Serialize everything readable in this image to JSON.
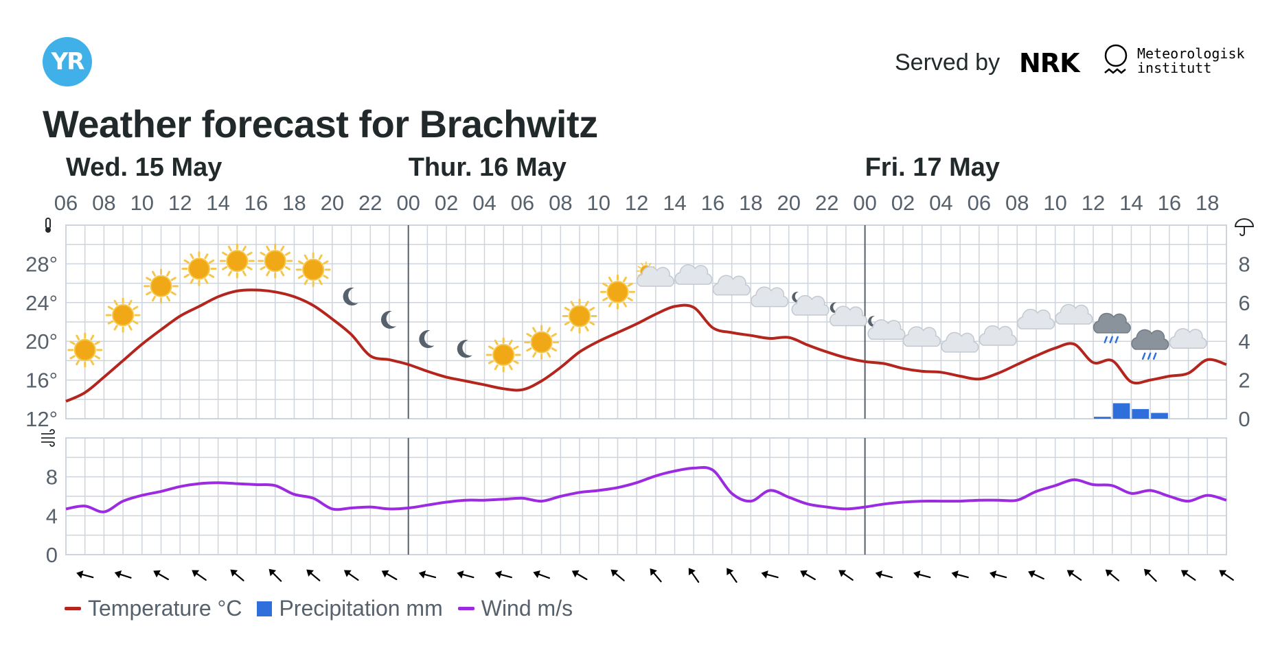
{
  "header": {
    "logo_text": "YR",
    "served_by": "Served by",
    "nrk_logo_text": "NRK",
    "met_name": [
      "Meteorologisk",
      "institutt"
    ]
  },
  "title": "Weather forecast for Brachwitz",
  "colors": {
    "temperature": "#b4251d",
    "precipitation": "#2f6fdc",
    "wind": "#9b2ae0",
    "grid": "#ced4dc",
    "day_separator": "#56616c",
    "text": "#21292b",
    "axis_text": "#56616c",
    "sun": "#f0a817",
    "cloud": "#e2e5ea",
    "moon": "#56616c"
  },
  "legend": [
    {
      "label": "Temperature °C",
      "kind": "line",
      "color_key": "temperature"
    },
    {
      "label": "Precipitation mm",
      "kind": "box",
      "color_key": "precipitation"
    },
    {
      "label": "Wind m/s",
      "kind": "line",
      "color_key": "wind"
    }
  ],
  "chart_data": {
    "type": "line",
    "days": [
      {
        "label": "Wed. 15 May",
        "start_hour": 6
      },
      {
        "label": "Thur. 16 May",
        "start_hour": 24
      },
      {
        "label": "Fri. 17 May",
        "start_hour": 48
      }
    ],
    "time_ticks": [
      "06",
      "08",
      "10",
      "12",
      "14",
      "16",
      "18",
      "20",
      "22",
      "00",
      "02",
      "04",
      "06",
      "08",
      "10",
      "12",
      "14",
      "16",
      "18",
      "20",
      "22",
      "00",
      "02",
      "04",
      "06",
      "08",
      "10",
      "12",
      "14",
      "16",
      "18"
    ],
    "x_range_hours": [
      6,
      67
    ],
    "temperature": {
      "axis_icon": "thermometer-icon",
      "yticks": [
        "12°",
        "16°",
        "20°",
        "24°",
        "28°"
      ],
      "ylim": [
        12,
        32
      ],
      "series": {
        "name": "Temperature °C",
        "x": [
          6,
          7,
          8,
          9,
          10,
          11,
          12,
          13,
          14,
          15,
          16,
          17,
          18,
          19,
          20,
          21,
          22,
          23,
          24,
          25,
          26,
          27,
          28,
          29,
          30,
          31,
          32,
          33,
          34,
          35,
          36,
          37,
          38,
          39,
          40,
          41,
          42,
          43,
          44,
          45,
          46,
          47,
          48,
          49,
          50,
          51,
          52,
          53,
          54,
          55,
          56,
          57,
          58,
          59,
          60,
          61,
          62,
          63,
          64,
          65,
          66,
          67
        ],
        "values": [
          13.8,
          14.7,
          16.3,
          18.0,
          19.7,
          21.2,
          22.6,
          23.6,
          24.6,
          25.2,
          25.3,
          25.1,
          24.6,
          23.7,
          22.3,
          20.7,
          18.5,
          18.1,
          17.6,
          16.9,
          16.3,
          15.9,
          15.5,
          15.1,
          15.0,
          15.9,
          17.3,
          18.9,
          20.0,
          20.9,
          21.8,
          22.8,
          23.6,
          23.5,
          21.4,
          20.9,
          20.6,
          20.3,
          20.4,
          19.6,
          18.9,
          18.3,
          17.9,
          17.7,
          17.2,
          16.9,
          16.8,
          16.4,
          16.1,
          16.7,
          17.6,
          18.5,
          19.3,
          19.7,
          17.8,
          18.0,
          15.8,
          16.0,
          16.4,
          16.7,
          18.1,
          17.6
        ]
      },
      "symbols": [
        {
          "hour": 7,
          "icon": "sun-icon",
          "temp": 19.1
        },
        {
          "hour": 9,
          "icon": "sun-icon",
          "temp": 22.7
        },
        {
          "hour": 11,
          "icon": "sun-icon",
          "temp": 25.7
        },
        {
          "hour": 13,
          "icon": "sun-icon",
          "temp": 27.5
        },
        {
          "hour": 15,
          "icon": "sun-icon",
          "temp": 28.3
        },
        {
          "hour": 17,
          "icon": "sun-icon",
          "temp": 28.3
        },
        {
          "hour": 19,
          "icon": "sun-icon",
          "temp": 27.4
        },
        {
          "hour": 21,
          "icon": "moon-icon",
          "temp": 24.6
        },
        {
          "hour": 23,
          "icon": "moon-icon",
          "temp": 22.2
        },
        {
          "hour": 25,
          "icon": "moon-icon",
          "temp": 20.2
        },
        {
          "hour": 27,
          "icon": "moon-icon",
          "temp": 19.2
        },
        {
          "hour": 29,
          "icon": "sun-icon",
          "temp": 18.6
        },
        {
          "hour": 31,
          "icon": "sun-icon",
          "temp": 19.9
        },
        {
          "hour": 33,
          "icon": "sun-icon",
          "temp": 22.6
        },
        {
          "hour": 35,
          "icon": "sun-icon",
          "temp": 25.1
        },
        {
          "hour": 37,
          "icon": "cloud-sun-icon",
          "temp": 26.4
        },
        {
          "hour": 39,
          "icon": "cloud-icon",
          "temp": 26.6
        },
        {
          "hour": 41,
          "icon": "cloud-icon",
          "temp": 25.5
        },
        {
          "hour": 43,
          "icon": "cloud-icon",
          "temp": 24.3
        },
        {
          "hour": 45,
          "icon": "cloud-moon-icon",
          "temp": 23.7
        },
        {
          "hour": 47,
          "icon": "cloud-moon-icon",
          "temp": 22.6
        },
        {
          "hour": 49,
          "icon": "cloud-moon-icon",
          "temp": 21.2
        },
        {
          "hour": 51,
          "icon": "cloud-icon",
          "temp": 20.2
        },
        {
          "hour": 53,
          "icon": "cloud-icon",
          "temp": 19.6
        },
        {
          "hour": 55,
          "icon": "cloud-icon",
          "temp": 20.3
        },
        {
          "hour": 57,
          "icon": "cloud-icon",
          "temp": 22.0
        },
        {
          "hour": 59,
          "icon": "cloud-icon",
          "temp": 22.5
        },
        {
          "hour": 61,
          "icon": "rain-cloud-icon",
          "temp": 21.3
        },
        {
          "hour": 63,
          "icon": "rain-cloud-icon",
          "temp": 19.6
        },
        {
          "hour": 65,
          "icon": "cloud-icon",
          "temp": 20.0
        }
      ]
    },
    "precipitation": {
      "axis_icon": "umbrella-icon",
      "yticks": [
        "0",
        "2",
        "4",
        "6",
        "8"
      ],
      "ylim": [
        0,
        10
      ],
      "series": {
        "name": "Precipitation mm",
        "x": [
          60,
          61,
          62,
          63
        ],
        "values": [
          0.1,
          0.8,
          0.5,
          0.3
        ]
      }
    },
    "wind": {
      "axis_icon": "wind-icon",
      "yticks": [
        "0",
        "4",
        "8"
      ],
      "ylim": [
        0,
        12
      ],
      "series": {
        "name": "Wind m/s",
        "x": [
          6,
          7,
          8,
          9,
          10,
          11,
          12,
          13,
          14,
          15,
          16,
          17,
          18,
          19,
          20,
          21,
          22,
          23,
          24,
          25,
          26,
          27,
          28,
          29,
          30,
          31,
          32,
          33,
          34,
          35,
          36,
          37,
          38,
          39,
          40,
          41,
          42,
          43,
          44,
          45,
          46,
          47,
          48,
          49,
          50,
          51,
          52,
          53,
          54,
          55,
          56,
          57,
          58,
          59,
          60,
          61,
          62,
          63,
          64,
          65,
          66,
          67
        ],
        "values": [
          4.7,
          5.0,
          4.4,
          5.5,
          6.1,
          6.5,
          7.0,
          7.3,
          7.4,
          7.3,
          7.2,
          7.1,
          6.2,
          5.8,
          4.7,
          4.8,
          4.9,
          4.7,
          4.8,
          5.1,
          5.4,
          5.6,
          5.6,
          5.7,
          5.8,
          5.5,
          6.0,
          6.4,
          6.6,
          6.9,
          7.4,
          8.1,
          8.6,
          8.9,
          8.7,
          6.3,
          5.5,
          6.6,
          5.9,
          5.2,
          4.9,
          4.7,
          4.9,
          5.2,
          5.4,
          5.5,
          5.5,
          5.5,
          5.6,
          5.6,
          5.6,
          6.5,
          7.1,
          7.7,
          7.2,
          7.1,
          6.3,
          6.6,
          6.0,
          5.5,
          6.1,
          5.6
        ]
      },
      "arrow_hours": [
        7,
        9,
        11,
        13,
        15,
        17,
        19,
        21,
        23,
        25,
        27,
        29,
        31,
        33,
        35,
        37,
        39,
        41,
        43,
        45,
        47,
        49,
        51,
        53,
        55,
        57,
        59,
        61,
        63,
        65,
        67
      ],
      "arrow_directions_deg": [
        285,
        288,
        300,
        305,
        310,
        315,
        310,
        305,
        300,
        285,
        285,
        285,
        290,
        300,
        310,
        320,
        325,
        325,
        285,
        300,
        305,
        285,
        285,
        285,
        285,
        295,
        305,
        310,
        315,
        305,
        305
      ]
    }
  }
}
